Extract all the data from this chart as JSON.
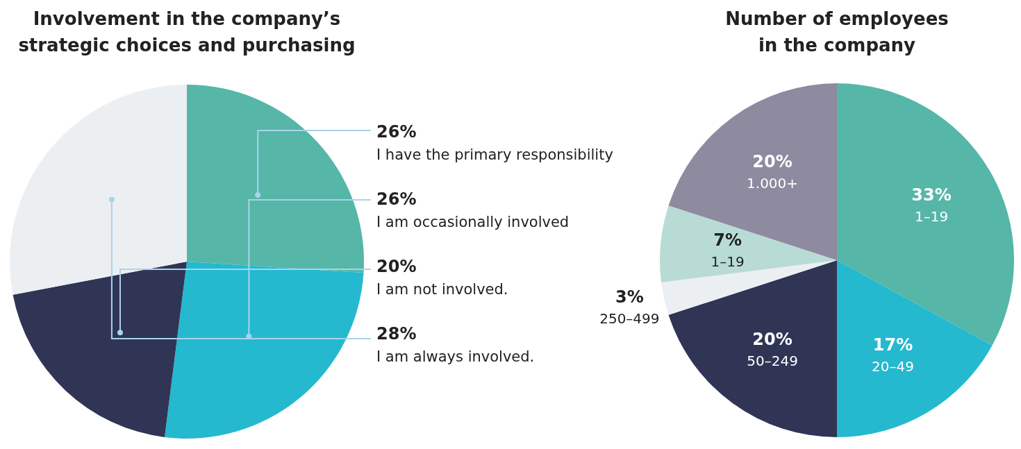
{
  "chart_data": [
    {
      "type": "pie",
      "title": "Involvement in the company’s\nstrategic choices and purchasing",
      "categories": [
        "I have the primary responsibility",
        "I am occasionally involved",
        "I am not involved.",
        "I am always involved."
      ],
      "values": [
        26,
        26,
        20,
        28
      ],
      "value_labels": [
        "26%",
        "26%",
        "20%",
        "28%"
      ],
      "colors": [
        "#56b6a8",
        "#24b9cf",
        "#303556",
        "#eceff2"
      ]
    },
    {
      "type": "pie",
      "title": "Number of employees\nin the company",
      "categories": [
        "1–19",
        "20–49",
        "50–249",
        "250–499",
        "1–19",
        "1.000+"
      ],
      "values": [
        33,
        17,
        20,
        3,
        7,
        20
      ],
      "value_labels": [
        "33%",
        "17%",
        "20%",
        "3%",
        "7%",
        "20%"
      ],
      "colors": [
        "#56b6a8",
        "#24b9cf",
        "#303556",
        "#eceff2",
        "#b8dcd5",
        "#8e8a9f"
      ]
    }
  ]
}
